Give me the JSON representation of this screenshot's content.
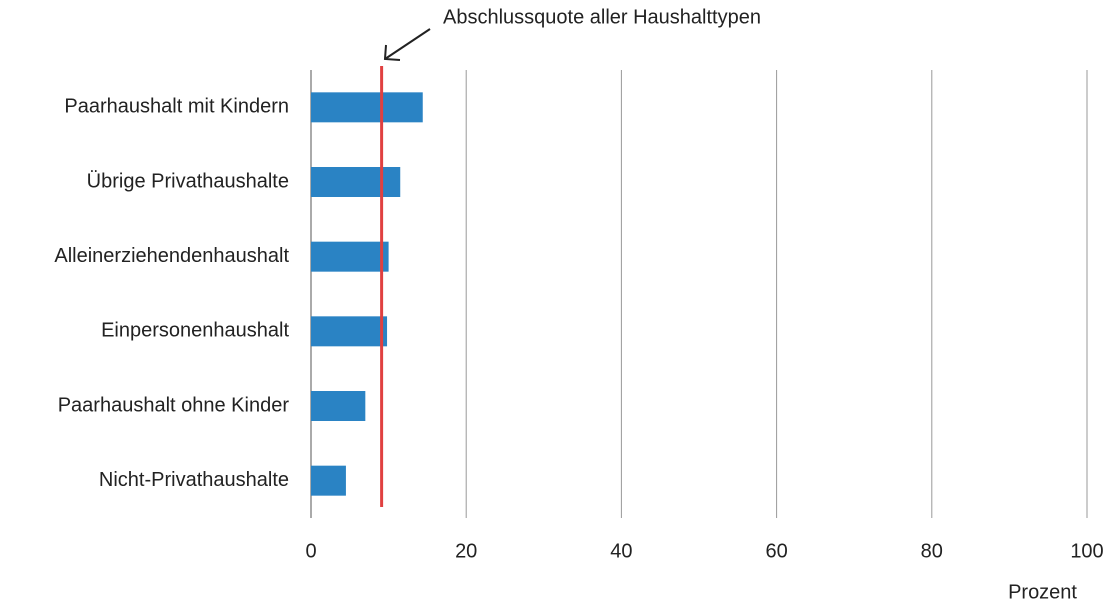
{
  "chart_data": {
    "type": "bar",
    "orientation": "horizontal",
    "categories": [
      "Paarhaushalt mit Kindern",
      "Übrige Privathaushalte",
      "Alleinerziehendenhaushalt",
      "Einpersonenhaushalt",
      "Paarhaushalt ohne Kinder",
      "Nicht-Privathaushalte"
    ],
    "values": [
      14.4,
      11.5,
      10.0,
      9.8,
      7.0,
      4.5
    ],
    "color": "#2a83c4",
    "xlim": [
      0,
      100
    ],
    "xticks": [
      0,
      20,
      40,
      60,
      80,
      100
    ],
    "xlabel": "Prozent",
    "grid": true,
    "reference_line": {
      "value": 9.1,
      "label": "Abschlussquote aller Haushalttypen",
      "color": "#e04040"
    }
  }
}
